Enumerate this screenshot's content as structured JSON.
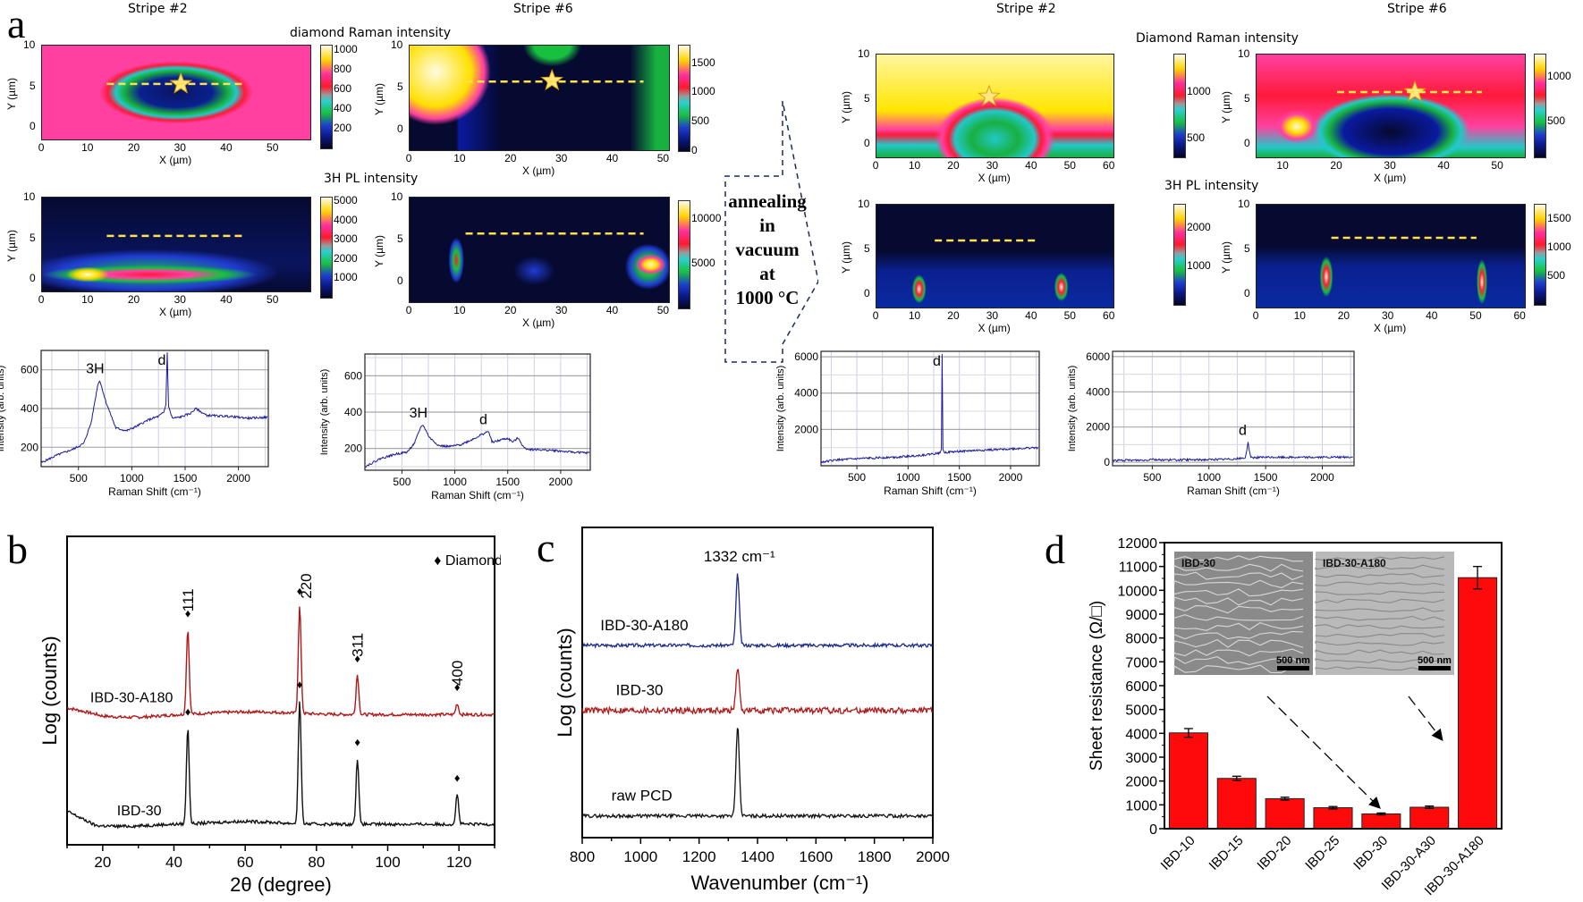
{
  "panel_labels": {
    "a": "a",
    "b": "b",
    "c": "c",
    "d": "d"
  },
  "panel_a": {
    "stripe_headers": [
      "Stripe #2",
      "Stripe #6",
      "Stripe #2",
      "Stripe #6"
    ],
    "before_raman_title": "diamond Raman intensity",
    "after_raman_title": "Diamond Raman intensity",
    "pl_title": "3H PL intensity",
    "annealing_lines": [
      "annealing",
      "in",
      "vacuum",
      "at",
      "1000 °C"
    ],
    "x_axis_label": "X (µm)",
    "y_axis_label": "Y (µm)",
    "spectrum_x_label": "Raman Shift (cm⁻¹)",
    "spectrum_y_label": "Intensity (arb. units)"
  },
  "chart_data": [
    {
      "id": "a-heatmap-before-stripe2-raman",
      "type": "heatmap",
      "title": "diamond Raman intensity",
      "header": "Stripe #2",
      "xlabel": "X (µm)",
      "ylabel": "Y (µm)",
      "xticks": [
        "0",
        "10",
        "20",
        "30",
        "40",
        "50"
      ],
      "yticks": [
        "0",
        "5",
        "10"
      ],
      "xlim": [
        0,
        58
      ],
      "ylim": [
        -1.5,
        10
      ],
      "colorbar_ticks": [
        "1000",
        "800",
        "600",
        "400",
        "200"
      ],
      "colorbar_range": [
        0,
        1050
      ],
      "annotations": [
        "star at (30, 5.3)",
        "dashed line y≈5.3 from x≈14 to x≈44"
      ]
    },
    {
      "id": "a-heatmap-before-stripe6-raman",
      "type": "heatmap",
      "header": "Stripe #6",
      "xlabel": "X (µm)",
      "ylabel": "Y (µm)",
      "xticks": [
        "0",
        "10",
        "20",
        "30",
        "40",
        "50"
      ],
      "yticks": [
        "0",
        "5",
        "10"
      ],
      "xlim": [
        0,
        51
      ],
      "ylim": [
        -2.5,
        10
      ],
      "colorbar_ticks": [
        "1500",
        "1000",
        "500",
        "0"
      ],
      "colorbar_range": [
        0,
        1800
      ],
      "annotations": [
        "star at (28, 5.8)",
        "dashed line y≈5.7 from x≈11 to x≈46"
      ]
    },
    {
      "id": "a-heatmap-before-stripe2-pl",
      "type": "heatmap",
      "title": "3H PL intensity",
      "xlabel": "X (µm)",
      "ylabel": "Y (µm)",
      "xticks": [
        "0",
        "10",
        "20",
        "30",
        "40",
        "50"
      ],
      "yticks": [
        "0",
        "5",
        "10"
      ],
      "xlim": [
        0,
        58
      ],
      "ylim": [
        -1.5,
        10
      ],
      "colorbar_ticks": [
        "5000",
        "4000",
        "3000",
        "2000",
        "1000"
      ],
      "colorbar_range": [
        0,
        5200
      ],
      "annotations": [
        "dashed line y≈5.3 from x≈14 to x≈44"
      ]
    },
    {
      "id": "a-heatmap-before-stripe6-pl",
      "type": "heatmap",
      "xlabel": "X (µm)",
      "ylabel": "Y (µm)",
      "xticks": [
        "0",
        "10",
        "20",
        "30",
        "40",
        "50"
      ],
      "yticks": [
        "0",
        "5",
        "10"
      ],
      "xlim": [
        0,
        51
      ],
      "ylim": [
        -2.5,
        10
      ],
      "colorbar_ticks": [
        "10000",
        "5000"
      ],
      "colorbar_range": [
        0,
        12000
      ],
      "annotations": [
        "dashed line y≈5.7 from x≈11 to x≈46"
      ]
    },
    {
      "id": "a-heatmap-after-stripe2-raman",
      "type": "heatmap",
      "title": "Diamond Raman intensity",
      "header": "Stripe #2",
      "xlabel": "X (µm)",
      "ylabel": "Y (µm)",
      "xticks": [
        "0",
        "10",
        "20",
        "30",
        "40",
        "50",
        "60"
      ],
      "yticks": [
        "0",
        "5",
        "10"
      ],
      "xlim": [
        0,
        61
      ],
      "ylim": [
        -1.5,
        10
      ],
      "colorbar_ticks": [
        "1000",
        "500"
      ],
      "colorbar_range": [
        300,
        1400
      ],
      "annotations": [
        "star at (29, 5.3)"
      ]
    },
    {
      "id": "a-heatmap-after-stripe6-raman",
      "type": "heatmap",
      "header": "Stripe #6",
      "xlabel": "X (µm)",
      "ylabel": "Y (µm)",
      "xticks": [
        "10",
        "20",
        "30",
        "40",
        "50"
      ],
      "yticks": [
        "0",
        "5",
        "10"
      ],
      "xlim": [
        5,
        55
      ],
      "ylim": [
        -1.5,
        10
      ],
      "colorbar_ticks": [
        "1000",
        "500"
      ],
      "colorbar_range": [
        100,
        1250
      ],
      "annotations": [
        "star at (34.5, 5.8)",
        "dashed line y≈5.8 from x≈20 to x≈47"
      ]
    },
    {
      "id": "a-heatmap-after-stripe2-pl",
      "type": "heatmap",
      "title": "3H PL intensity",
      "xlabel": "X (µm)",
      "ylabel": "Y (µm)",
      "xticks": [
        "0",
        "10",
        "20",
        "30",
        "40",
        "50",
        "60"
      ],
      "yticks": [
        "0",
        "5",
        "10"
      ],
      "xlim": [
        0,
        61
      ],
      "ylim": [
        -1.5,
        10
      ],
      "colorbar_ticks": [
        "2000",
        "1000"
      ],
      "colorbar_range": [
        0,
        2600
      ],
      "annotations": [
        "dashed line y≈6 from x≈15 to x≈41"
      ]
    },
    {
      "id": "a-heatmap-after-stripe6-pl",
      "type": "heatmap",
      "xlabel": "X (µm)",
      "ylabel": "Y (µm)",
      "xticks": [
        "0",
        "10",
        "20",
        "30",
        "40",
        "50",
        "60"
      ],
      "yticks": [
        "0",
        "5",
        "10"
      ],
      "xlim": [
        0,
        61
      ],
      "ylim": [
        -1.5,
        10
      ],
      "colorbar_ticks": [
        "1500",
        "1000",
        "500"
      ],
      "colorbar_range": [
        0,
        1750
      ],
      "annotations": [
        "dashed line y≈6.3 from x≈17 to x≈50"
      ]
    },
    {
      "id": "a-spectrum-before-stripe2",
      "type": "line",
      "xlabel": "Raman Shift (cm⁻¹)",
      "ylabel": "Intensity (arb. units)",
      "xlim": [
        150,
        2280
      ],
      "ylim": [
        100,
        700
      ],
      "xticks": [
        "500",
        "1000",
        "1500",
        "2000"
      ],
      "yticks": [
        "200",
        "400",
        "600"
      ],
      "series": [
        {
          "name": "spectrum",
          "color": "#1a1a9a",
          "x": [
            150,
            300,
            450,
            550,
            620,
            680,
            700,
            760,
            850,
            950,
            1050,
            1150,
            1250,
            1300,
            1320,
            1332,
            1345,
            1380,
            1450,
            1550,
            1600,
            1700,
            1900,
            2100,
            2270
          ],
          "y": [
            120,
            160,
            190,
            220,
            330,
            520,
            545,
            430,
            300,
            285,
            310,
            340,
            360,
            380,
            420,
            690,
            410,
            350,
            355,
            375,
            400,
            365,
            360,
            350,
            355
          ]
        }
      ],
      "peak_labels": [
        {
          "text": "3H",
          "x": 690
        },
        {
          "text": "d",
          "x": 1332
        }
      ]
    },
    {
      "id": "a-spectrum-before-stripe6",
      "type": "line",
      "xlabel": "Raman Shift (cm⁻¹)",
      "ylabel": "Intensity (arb. units)",
      "xlim": [
        150,
        2280
      ],
      "ylim": [
        80,
        720
      ],
      "xticks": [
        "500",
        "1000",
        "1500",
        "2000"
      ],
      "yticks": [
        "200",
        "400",
        "600"
      ],
      "series": [
        {
          "name": "spectrum",
          "color": "#1a1a9a",
          "x": [
            150,
            300,
            450,
            550,
            620,
            680,
            700,
            760,
            850,
            950,
            1050,
            1150,
            1250,
            1300,
            1320,
            1350,
            1400,
            1450,
            1500,
            1550,
            1600,
            1650,
            1700,
            1900,
            2100,
            2270
          ],
          "y": [
            100,
            145,
            170,
            180,
            230,
            320,
            330,
            260,
            215,
            210,
            220,
            245,
            275,
            290,
            295,
            235,
            240,
            250,
            255,
            235,
            260,
            205,
            195,
            190,
            180,
            175
          ]
        }
      ],
      "peak_labels": [
        {
          "text": "3H",
          "x": 690
        },
        {
          "text": "d",
          "x": 1320
        }
      ]
    },
    {
      "id": "a-spectrum-after-stripe2",
      "type": "line",
      "xlabel": "Raman Shift (cm⁻¹)",
      "ylabel": "Intensity (arb. units)",
      "xlim": [
        150,
        2280
      ],
      "ylim": [
        0,
        6300
      ],
      "xticks": [
        "500",
        "1000",
        "1500",
        "2000"
      ],
      "yticks": [
        "2000",
        "4000",
        "6000"
      ],
      "series": [
        {
          "name": "spectrum",
          "color": "#1a1a9a",
          "x": [
            150,
            300,
            500,
            700,
            900,
            1100,
            1250,
            1310,
            1325,
            1332,
            1340,
            1355,
            1500,
            1700,
            1900,
            2100,
            2270
          ],
          "y": [
            200,
            320,
            380,
            440,
            480,
            560,
            660,
            700,
            900,
            6150,
            900,
            730,
            790,
            850,
            900,
            950,
            1000
          ]
        }
      ],
      "peak_labels": [
        {
          "text": "d",
          "x": 1332
        }
      ]
    },
    {
      "id": "a-spectrum-after-stripe6",
      "type": "line",
      "xlabel": "Raman Shift (cm⁻¹)",
      "ylabel": "Intensity (arb. units)",
      "xlim": [
        150,
        2280
      ],
      "ylim": [
        -200,
        6300
      ],
      "xticks": [
        "500",
        "1000",
        "1500",
        "2000"
      ],
      "yticks": [
        "0",
        "2000",
        "4000",
        "6000"
      ],
      "series": [
        {
          "name": "spectrum",
          "color": "#1a1a9a",
          "x": [
            150,
            300,
            450,
            500,
            530,
            700,
            900,
            1100,
            1250,
            1320,
            1335,
            1345,
            1355,
            1370,
            1500,
            1700,
            1900,
            2100,
            2270
          ],
          "y": [
            100,
            110,
            120,
            200,
            140,
            130,
            140,
            160,
            200,
            240,
            700,
            1150,
            700,
            270,
            280,
            280,
            280,
            280,
            290
          ]
        }
      ],
      "peak_labels": [
        {
          "text": "d",
          "x": 1345
        }
      ]
    },
    {
      "id": "b-xrd",
      "type": "line",
      "xlabel": "2θ (degree)",
      "ylabel": "Log (counts)",
      "xlim": [
        10,
        130
      ],
      "xticks": [
        "20",
        "40",
        "60",
        "80",
        "100",
        "120"
      ],
      "legend": {
        "marker": "♦",
        "label": "Diamond",
        "placement": "top-right"
      },
      "peak_labels": [
        {
          "text": "111",
          "x": 43.9
        },
        {
          "text": "220",
          "x": 75.3
        },
        {
          "text": "311",
          "x": 91.5
        },
        {
          "text": "400",
          "x": 119.5
        }
      ],
      "series": [
        {
          "name": "IBD-30-A180",
          "color": "#b01818",
          "offset": 1.0,
          "peaks": [
            {
              "x": 43.9,
              "h": 0.62
            },
            {
              "x": 75.3,
              "h": 0.78
            },
            {
              "x": 91.5,
              "h": 0.29
            },
            {
              "x": 119.5,
              "h": 0.08
            }
          ]
        },
        {
          "name": "IBD-30",
          "color": "#111111",
          "offset": 0.0,
          "peaks": [
            {
              "x": 43.9,
              "h": 0.7
            },
            {
              "x": 75.3,
              "h": 0.9
            },
            {
              "x": 91.5,
              "h": 0.48
            },
            {
              "x": 119.5,
              "h": 0.22
            }
          ]
        }
      ]
    },
    {
      "id": "c-raman",
      "type": "line",
      "xlabel": "Wavenumber (cm⁻¹)",
      "ylabel": "Log (counts)",
      "xlim": [
        800,
        2000
      ],
      "xticks": [
        "800",
        "1000",
        "1200",
        "1400",
        "1600",
        "1800",
        "2000"
      ],
      "peak_label": "1332 cm⁻¹",
      "series": [
        {
          "name": "IBD-30-A180",
          "color": "#1a2a88",
          "baseline": 0.62,
          "peak_x": 1332,
          "peak_h": 0.23
        },
        {
          "name": "IBD-30",
          "color": "#b01818",
          "baseline": 0.41,
          "peak_x": 1332,
          "peak_h": 0.14
        },
        {
          "name": "raw PCD",
          "color": "#111111",
          "baseline": 0.07,
          "peak_x": 1332,
          "peak_h": 0.29
        }
      ]
    },
    {
      "id": "d-sheet-resistance",
      "type": "bar",
      "ylabel": "Sheet resistance (Ω/□)",
      "ylim": [
        0,
        12000
      ],
      "yticks": [
        "0",
        "1000",
        "2000",
        "3000",
        "4000",
        "5000",
        "6000",
        "7000",
        "8000",
        "9000",
        "10000",
        "11000",
        "12000"
      ],
      "categories": [
        "IBD-10",
        "IBD-15",
        "IBD-20",
        "IBD-25",
        "IBD-30",
        "IBD-30-A30",
        "IBD-30-A180"
      ],
      "values": [
        4020,
        2110,
        1260,
        880,
        620,
        900,
        10530
      ],
      "errors": [
        180,
        90,
        60,
        50,
        40,
        50,
        470
      ],
      "bar_color": "#ff0a0a",
      "insets": [
        {
          "label": "IBD-30",
          "scale_bar": "500 nm"
        },
        {
          "label": "IBD-30-A180",
          "scale_bar": "500 nm"
        }
      ]
    }
  ]
}
